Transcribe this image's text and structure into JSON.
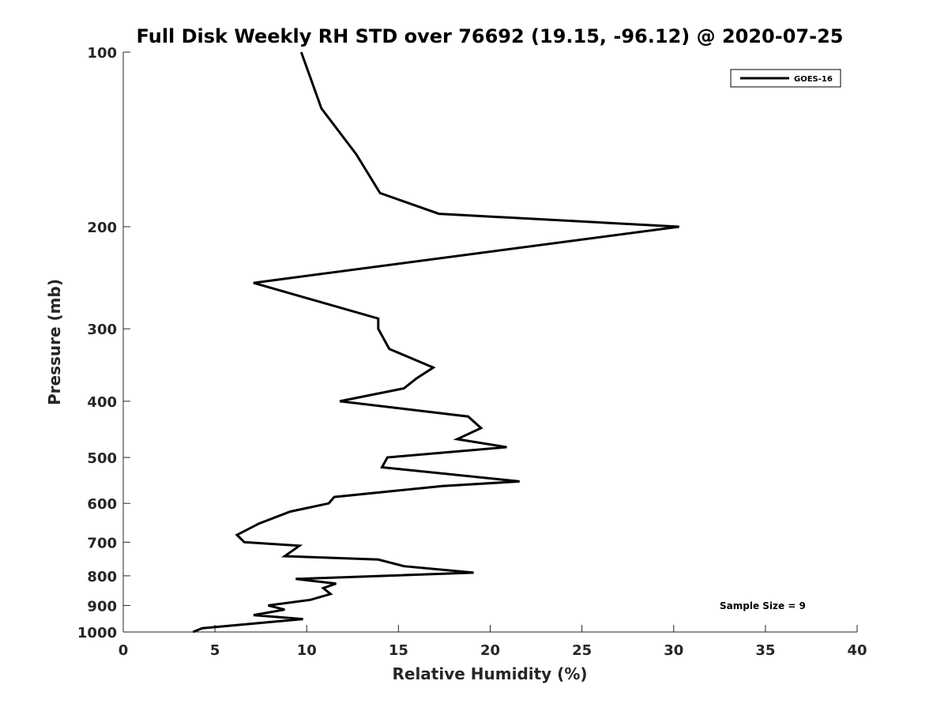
{
  "chart_data": {
    "type": "line",
    "title": "Full Disk Weekly RH STD over 76692 (19.15, -96.12) @ 2020-07-25",
    "xlabel": "Relative Humidity (%)",
    "ylabel": "Pressure (mb)",
    "xlim": [
      0,
      40
    ],
    "ylim": [
      100,
      1000
    ],
    "y_scale": "log",
    "y_reversed": true,
    "x_ticks": [
      0,
      5,
      10,
      15,
      20,
      25,
      30,
      35,
      40
    ],
    "y_ticks": [
      100,
      200,
      300,
      400,
      500,
      600,
      700,
      800,
      900,
      1000
    ],
    "grid": false,
    "legend_position": "top-right",
    "annotation": "Sample Size = 9",
    "series": [
      {
        "name": "GOES-16",
        "color": "#000000",
        "points": [
          [
            9.7,
            100
          ],
          [
            10.8,
            125
          ],
          [
            12.7,
            150
          ],
          [
            14.0,
            175
          ],
          [
            17.2,
            190
          ],
          [
            30.3,
            200
          ],
          [
            7.1,
            250
          ],
          [
            13.9,
            288
          ],
          [
            13.9,
            300
          ],
          [
            14.5,
            325
          ],
          [
            16.9,
            350
          ],
          [
            16.0,
            365
          ],
          [
            15.3,
            380
          ],
          [
            11.8,
            400
          ],
          [
            18.8,
            425
          ],
          [
            19.5,
            445
          ],
          [
            18.2,
            465
          ],
          [
            20.9,
            480
          ],
          [
            14.4,
            500
          ],
          [
            14.1,
            520
          ],
          [
            21.6,
            550
          ],
          [
            17.4,
            560
          ],
          [
            11.5,
            585
          ],
          [
            11.2,
            600
          ],
          [
            9.1,
            620
          ],
          [
            7.4,
            650
          ],
          [
            6.2,
            680
          ],
          [
            6.6,
            700
          ],
          [
            9.6,
            710
          ],
          [
            8.8,
            740
          ],
          [
            13.9,
            750
          ],
          [
            15.3,
            770
          ],
          [
            19.1,
            790
          ],
          [
            9.4,
            810
          ],
          [
            11.6,
            825
          ],
          [
            10.9,
            840
          ],
          [
            11.3,
            860
          ],
          [
            10.2,
            880
          ],
          [
            7.9,
            900
          ],
          [
            8.8,
            915
          ],
          [
            7.1,
            935
          ],
          [
            9.8,
            950
          ],
          [
            4.3,
            985
          ],
          [
            3.8,
            1000
          ]
        ]
      }
    ]
  }
}
